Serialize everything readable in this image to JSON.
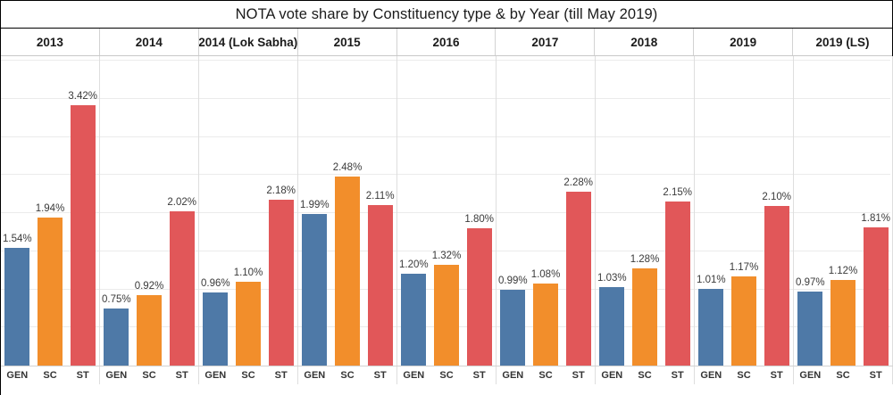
{
  "chart_data": {
    "type": "bar",
    "title": "NOTA vote share by Constituency type & by Year (till May 2019)",
    "panels": [
      "2013",
      "2014",
      "2014 (Lok Sabha)",
      "2015",
      "2016",
      "2017",
      "2018",
      "2019",
      "2019 (LS)"
    ],
    "categories": [
      "GEN",
      "SC",
      "ST"
    ],
    "series_colors": {
      "GEN": "#4E79A7",
      "SC": "#F28E2B",
      "ST": "#E15759"
    },
    "values": [
      [
        1.54,
        1.94,
        3.42
      ],
      [
        0.75,
        0.92,
        2.02
      ],
      [
        0.96,
        1.1,
        2.18
      ],
      [
        1.99,
        2.48,
        2.11
      ],
      [
        1.2,
        1.32,
        1.8
      ],
      [
        0.99,
        1.08,
        2.28
      ],
      [
        1.03,
        1.28,
        2.15
      ],
      [
        1.01,
        1.17,
        2.1
      ],
      [
        0.97,
        1.12,
        1.81
      ]
    ],
    "value_label_suffix": "%",
    "value_label_decimals": 2,
    "ylim": [
      0,
      4.06
    ],
    "gridline_interval": 0.5,
    "grid": true,
    "legend": "none",
    "gridline_color": "#ebebeb"
  }
}
